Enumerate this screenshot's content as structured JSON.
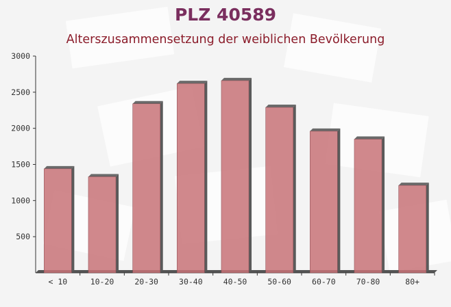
{
  "chart_data": {
    "type": "bar",
    "title": "PLZ 40589",
    "subtitle": "Alterszusammensetzung der weiblichen Bevölkerung",
    "categories": [
      "< 10",
      "10-20",
      "20-30",
      "30-40",
      "40-50",
      "50-60",
      "60-70",
      "70-80",
      "80+"
    ],
    "values": [
      1440,
      1330,
      2340,
      2620,
      2660,
      2290,
      1960,
      1850,
      1210
    ],
    "color": "#c87378",
    "ylim": [
      0,
      3000
    ],
    "yticks": [
      500,
      1000,
      1500,
      2000,
      2500,
      3000
    ]
  }
}
